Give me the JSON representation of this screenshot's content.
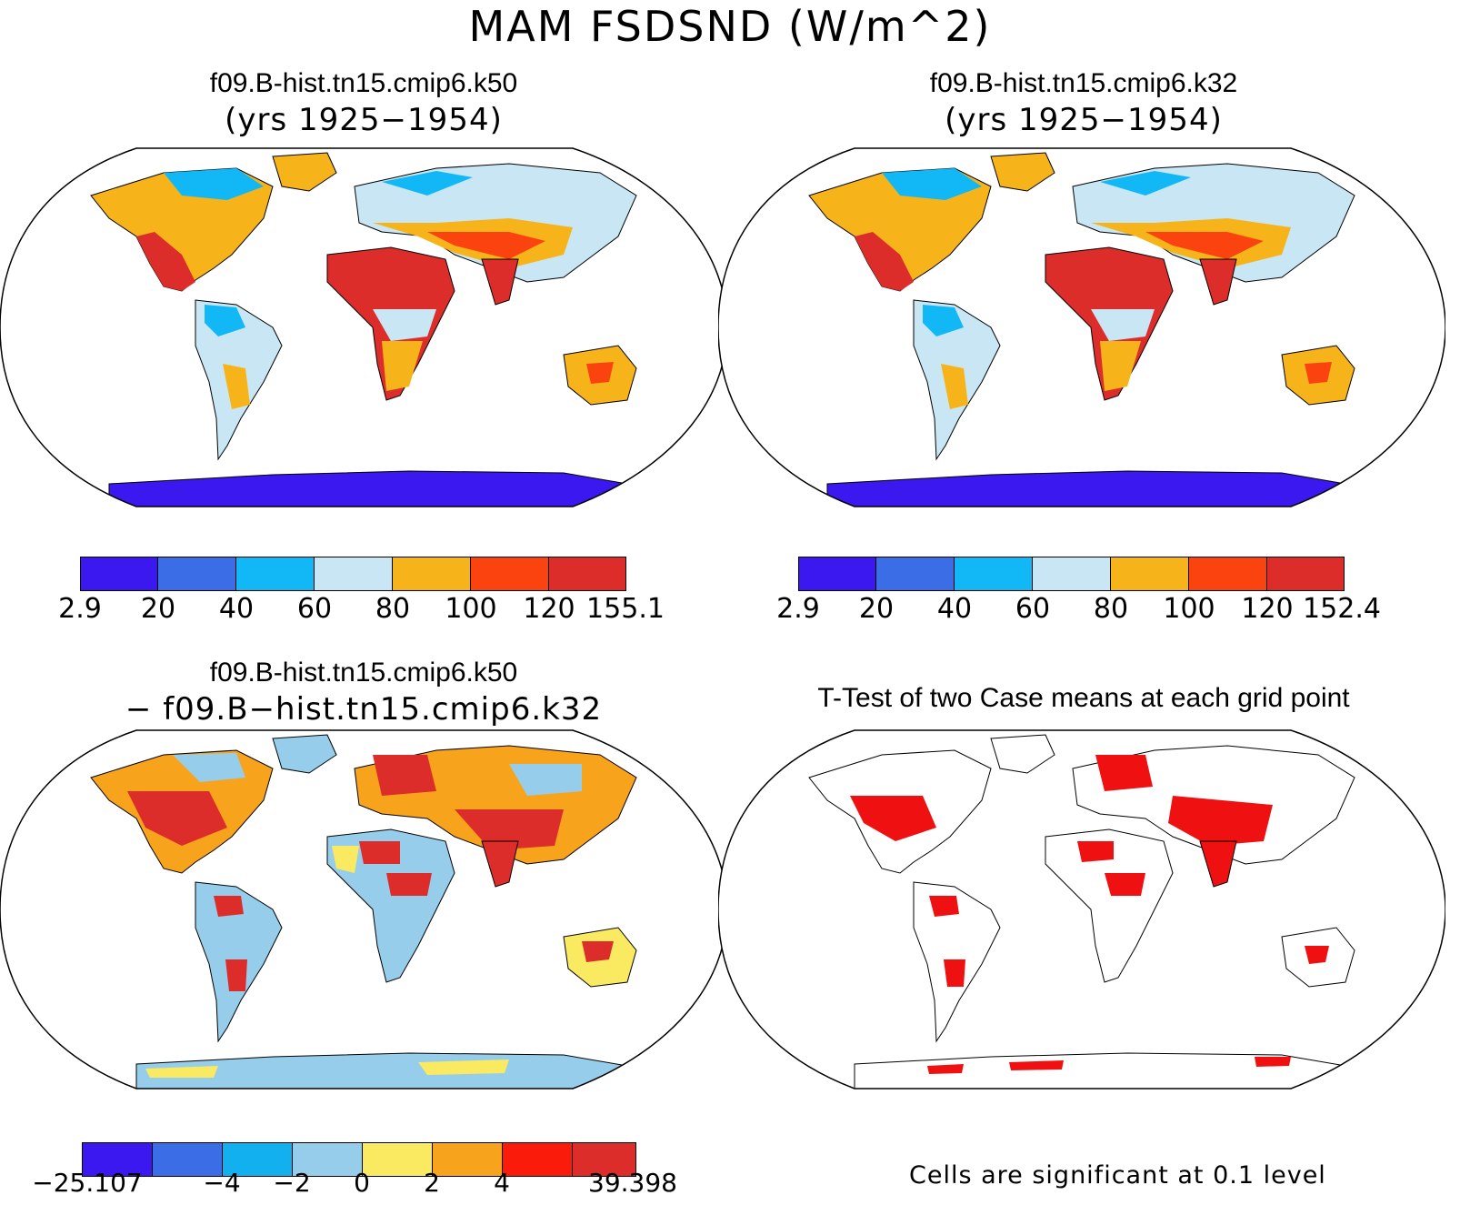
{
  "title": "MAM FSDSND (W/m^2)",
  "panels": {
    "top_left": {
      "case": "f09.B-hist.tn15.cmip6.k50",
      "years": "(yrs 1925−1954)",
      "colorbar": {
        "labels": [
          "2.9",
          "20",
          "40",
          "60",
          "80",
          "100",
          "120",
          "155.1"
        ],
        "colors": [
          "#3b18f0",
          "#3a6de6",
          "#12b8f5",
          "#c8e6f4",
          "#f7b41a",
          "#fb4310",
          "#dd2d2b"
        ]
      }
    },
    "top_right": {
      "case": "f09.B-hist.tn15.cmip6.k32",
      "years": "(yrs 1925−1954)",
      "colorbar": {
        "labels": [
          "2.9",
          "20",
          "40",
          "60",
          "80",
          "100",
          "120",
          "152.4"
        ],
        "colors": [
          "#3b18f0",
          "#3a6de6",
          "#12b8f5",
          "#c8e6f4",
          "#f7b41a",
          "#fb4310",
          "#dd2d2b"
        ]
      }
    },
    "bottom_left": {
      "case": "f09.B-hist.tn15.cmip6.k50",
      "minus_case": "− f09.B−hist.tn15.cmip6.k32",
      "colorbar": {
        "labels": [
          "−25.107",
          "",
          "−4",
          "−2",
          "0",
          "2",
          "4",
          "",
          "39.398"
        ],
        "colors": [
          "#3b18f0",
          "#3a6de6",
          "#12b0ef",
          "#96cdea",
          "#f9ea62",
          "#f7a41c",
          "#fb1b0b",
          "#dd2d2b"
        ]
      }
    },
    "bottom_right": {
      "title": "T-Test of two Case means at each grid point",
      "note": "Cells are significant at 0.1 level",
      "color": "#ef1111"
    }
  }
}
